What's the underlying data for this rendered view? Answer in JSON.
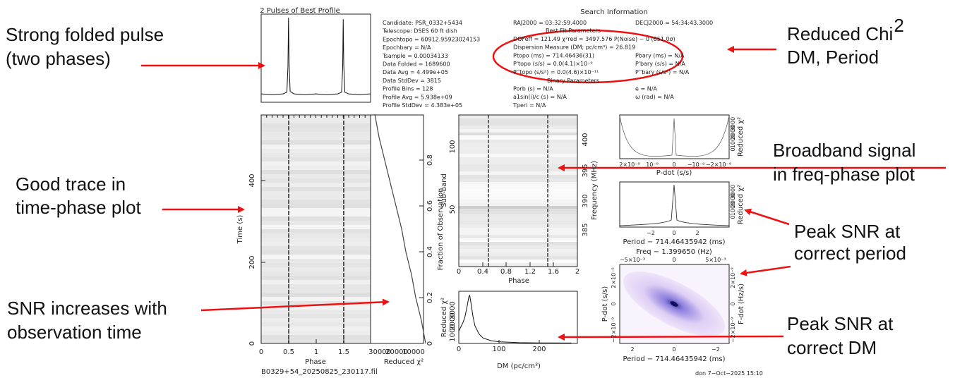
{
  "annotations": {
    "folded_pulse": [
      "Strong folded pulse",
      "(two phases)"
    ],
    "time_phase": [
      "Good trace in",
      "time-phase plot"
    ],
    "snr_time": [
      "SNR increases with",
      "observation time"
    ],
    "chi2": [
      "Reduced Chi",
      "2",
      "DM, Period"
    ],
    "broadband": [
      "Broadband signal",
      "in freq-phase plot"
    ],
    "peak_period": [
      "Peak SNR at",
      "correct period"
    ],
    "peak_dm": [
      "Peak SNR at",
      "correct DM"
    ]
  },
  "info": {
    "heading": "Search Information",
    "left": [
      "Candidate:  PSR_0332+5434",
      "Telescope:  DSES 60 ft dish",
      "Epochtopo   = 60912.95923024153",
      "Epochbary   = N/A",
      "Tsample     = 0.00034133",
      "Data Folded  = 1689600",
      "Data Avg     = 4.499e+05",
      "Data StdDev  = 3815",
      "Profile Bins = 128",
      "Profile Avg  = 5.938e+09",
      "Profile StdDev = 4.383e+05"
    ],
    "ra": "RAJ2000 = 03:32:59.4000",
    "dec": "DECJ2000 = 54:34:43.3000",
    "best_fit": "Best Fit Parameters",
    "fit": [
      "DOFeff = 121.49  χ²red = 3497.576  P(Noise) ~ 0  (651.0σ)",
      "Dispersion Measure (DM; pc/cm³) = 26.819",
      "Ptopo (ms) = 714.46436(31)",
      "P'topo (s/s) = 0.0(4.1)×10⁻⁹",
      "P''topo (s/s²) = 0.0(4.6)×10⁻¹¹"
    ],
    "bary": [
      "Pbary (ms) = N/A",
      "P'bary (s/s) = N/A",
      "P''bary (s/s²) = N/A"
    ],
    "binary_heading": "Binary Parameters",
    "binary": [
      "Porb (s) = N/A",
      "a1sin(i)/c (s) = N/A",
      "Tperi = N/A"
    ],
    "binary_right": [
      "e = N/A",
      "ω (rad) = N/A"
    ]
  },
  "profile": {
    "title": "2 Pulses of Best Profile",
    "phase": [
      0,
      0.2,
      0.4,
      0.47,
      0.49,
      0.5,
      0.51,
      0.53,
      0.6,
      0.8,
      1.0,
      1.2,
      1.4,
      1.47,
      1.49,
      1.5,
      1.51,
      1.53,
      1.6,
      1.8,
      2.0
    ],
    "values": [
      6,
      5,
      6,
      8,
      40,
      100,
      45,
      9,
      6,
      5,
      6,
      5,
      6,
      8,
      38,
      98,
      42,
      8,
      6,
      5,
      6
    ]
  },
  "time_phase": {
    "xticks": [
      "0",
      "0.5",
      "1",
      "1.5"
    ],
    "yticks": [
      "0",
      "200",
      "400"
    ],
    "xlabel": "Phase",
    "ylabel": "Time (s)"
  },
  "chi2_time": {
    "fraction": [
      0,
      0.1,
      0.2,
      0.3,
      0.4,
      0.5,
      0.6,
      0.7,
      0.8,
      0.9,
      1.0
    ],
    "values": [
      0,
      3000,
      7000,
      10000,
      14000,
      17000,
      21000,
      25000,
      29000,
      33000,
      36000
    ],
    "xticks": [
      "30000",
      "20000",
      "10000"
    ],
    "yticks": [
      "0",
      "0.2",
      "0.4",
      "0.6",
      "0.8"
    ],
    "xlabel": "Reduced χ²",
    "ylabel": "Fraction of Observation"
  },
  "freq_phase": {
    "xticks": [
      "0",
      "0.4",
      "0.8",
      "1.2",
      "1.6",
      "2"
    ],
    "subband_ticks": [
      "50",
      "100"
    ],
    "freq_ticks": [
      "385",
      "390",
      "395",
      "400"
    ],
    "xlabel": "Phase",
    "ylabel": "Sub-band",
    "y2label": "Frequency (MHz)"
  },
  "dm": {
    "dm": [
      0,
      5,
      10,
      15,
      20,
      25,
      27,
      30,
      35,
      40,
      50,
      60,
      80,
      100,
      150,
      200,
      280
    ],
    "values": [
      900,
      1200,
      1500,
      1900,
      2600,
      3400,
      3500,
      3000,
      2000,
      1300,
      700,
      400,
      200,
      120,
      60,
      40,
      30
    ],
    "xticks": [
      "0",
      "100",
      "200"
    ],
    "yticks": [
      "1000",
      "2000",
      "3000"
    ],
    "xlabel": "DM (pc/cm³)",
    "ylabel": "Reduced χ²"
  },
  "pdot": {
    "xticks": [
      "2×10⁻⁹",
      "10⁻⁹",
      "0",
      "−10⁻⁹",
      "−2×10⁻⁹"
    ],
    "yticks": [
      "0",
      "1000",
      "2000",
      "3000"
    ],
    "xlabel": "P-dot (s/s)",
    "ylabel": "Reduced χ²"
  },
  "period": {
    "xticks": [
      "−2",
      "0",
      "2"
    ],
    "yticks": [
      "0",
      "1000",
      "2000",
      "3000"
    ],
    "xlabel": "Period − 714.46435942 (ms)",
    "ylabel": "Reduced χ²"
  },
  "ppdot": {
    "top_label": "Freq − 1.399650 (Hz)",
    "top_ticks": [
      "−5×10⁻³",
      "0",
      "5×10⁻³"
    ],
    "xticks": [
      "2",
      "0",
      "−2"
    ],
    "yticks": [
      "−2×10⁻⁹",
      "0",
      "2×10⁻⁹"
    ],
    "y2ticks": [
      "−2×10⁻⁹",
      "0",
      "2×10⁻⁹"
    ],
    "xlabel": "Period − 714.46435942 (ms)",
    "ylabel": "P-dot (s/s)",
    "y2label": "F-dot (Hz/s)"
  },
  "footer": {
    "file": "B0329+54_20250825_230117.fil",
    "stamp": "don  7−Oct−2025 15:10"
  }
}
